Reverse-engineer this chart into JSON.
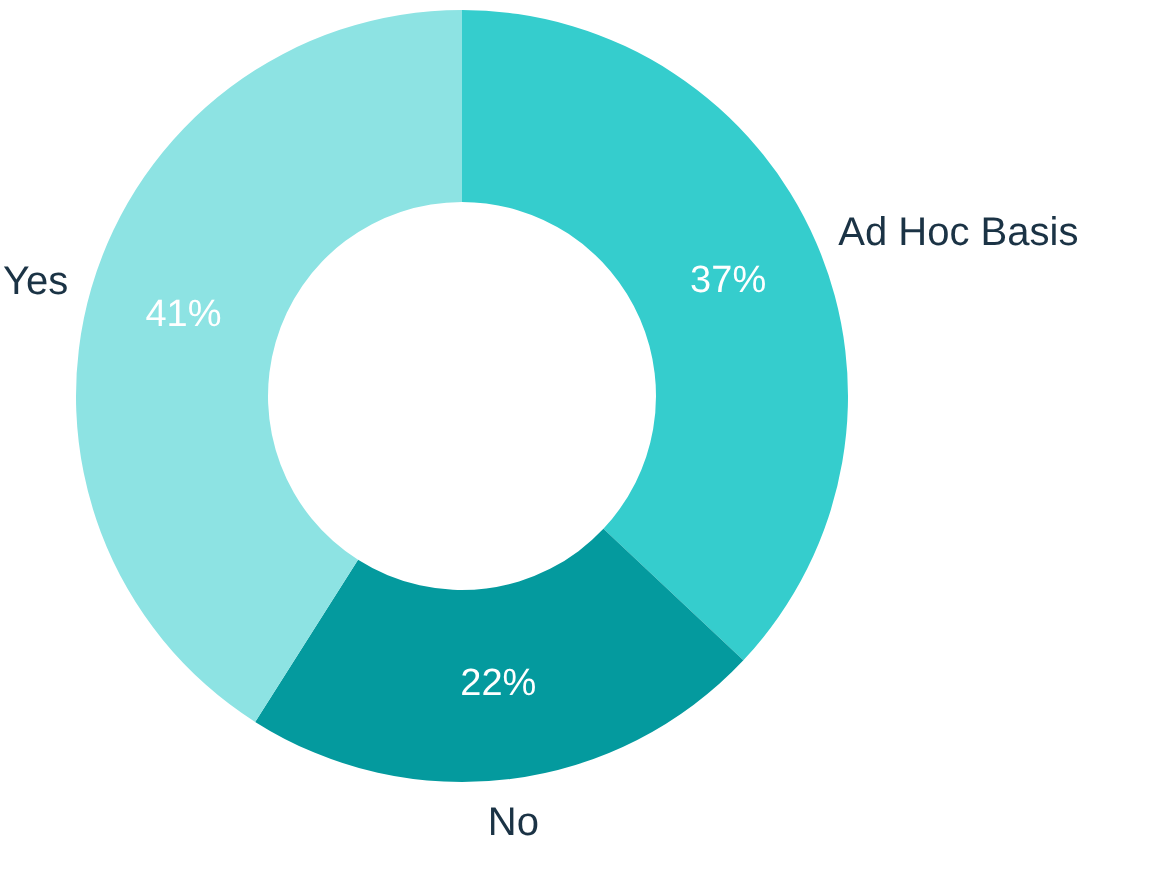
{
  "chart_data": {
    "type": "donut",
    "categories": [
      "Ad Hoc Basis",
      "No",
      "Yes"
    ],
    "values": [
      37,
      22,
      41
    ],
    "colors": [
      "#35cdcd",
      "#049a9e",
      "#8de3e3"
    ],
    "value_labels": [
      "37%",
      "22%",
      "41%"
    ],
    "legend": false
  }
}
